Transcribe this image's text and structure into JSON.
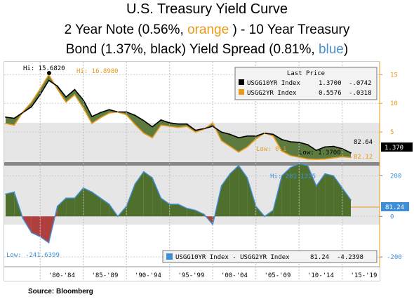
{
  "title": {
    "line1": "U.S. Treasury Yield Curve",
    "line2_a": "2 Year Note (0.56%, ",
    "line2_orange": "orange",
    "line2_b": " ) - 10 Year Treasury",
    "line3_a": "Bond  (1.37%, black) Yield Spread (0.81%, ",
    "line3_blue": "blue",
    "line3_b": ")"
  },
  "source": "Source: Bloomberg",
  "colors": {
    "orange": "#e89a1a",
    "black": "#000000",
    "blue": "#3f8fd8",
    "fill_green": "#4f6f2c",
    "fill_red": "#b04040",
    "upper_bg": "#e6e6e6",
    "lower_bg": "#e6e6e6"
  },
  "chart_data": [
    {
      "type": "line",
      "panel": "upper",
      "legend_title": "Last Price",
      "legend_placement": "top-right",
      "series": [
        {
          "name": "USGG10YR Index",
          "last": "1.3700",
          "change": "-.0742"
        },
        {
          "name": "USGG2YR Index",
          "last": "0.5576",
          "change": "-.0318"
        }
      ],
      "x_years": [
        1976,
        1977,
        1978,
        1979,
        1980,
        1981,
        1982,
        1983,
        1984,
        1985,
        1986,
        1987,
        1988,
        1989,
        1990,
        1991,
        1992,
        1993,
        1994,
        1995,
        1996,
        1997,
        1998,
        1999,
        2000,
        2001,
        2002,
        2003,
        2004,
        2005,
        2006,
        2007,
        2008,
        2009,
        2010,
        2011,
        2012,
        2013,
        2014,
        2015,
        2016
      ],
      "ten_year": [
        7.6,
        7.4,
        8.4,
        9.4,
        11.5,
        14.0,
        13.0,
        11.1,
        12.4,
        10.6,
        7.7,
        8.4,
        8.9,
        8.5,
        8.5,
        7.9,
        7.0,
        5.9,
        7.1,
        6.6,
        6.4,
        6.4,
        5.3,
        5.6,
        6.0,
        5.0,
        4.6,
        4.0,
        4.3,
        4.3,
        4.8,
        4.6,
        3.7,
        3.3,
        3.2,
        2.8,
        1.8,
        2.4,
        2.5,
        2.1,
        1.37
      ],
      "two_year": [
        6.5,
        6.2,
        8.5,
        10.2,
        12.5,
        15.0,
        12.5,
        10.2,
        11.5,
        9.2,
        6.5,
        7.5,
        8.3,
        8.5,
        8.0,
        6.3,
        4.8,
        4.0,
        6.2,
        6.0,
        5.8,
        6.0,
        5.0,
        5.5,
        6.6,
        3.5,
        2.5,
        1.5,
        2.4,
        3.8,
        4.8,
        4.3,
        1.7,
        0.9,
        0.6,
        0.3,
        0.25,
        0.3,
        0.5,
        0.7,
        0.56
      ],
      "y_ticks": [
        5,
        10,
        15
      ],
      "ylim": [
        0,
        17
      ],
      "annotations": {
        "hi_black": "Hi: 15.6820",
        "hi_orange": "Hi: 16.8980",
        "low_orange": "Low: 0.1",
        "low_black": "Low: 1.3700",
        "spread_callout": "82.64",
        "spread_callout2": "82.12",
        "last_value_tag": "1.370"
      }
    },
    {
      "type": "area",
      "panel": "lower",
      "legend_placement": "bottom-right",
      "series": [
        {
          "name": "USGG10YR Index - USGG2YR Index",
          "last": "81.24",
          "change": "-4.2398"
        }
      ],
      "x_years": [
        1976,
        1977,
        1978,
        1979,
        1980,
        1981,
        1982,
        1983,
        1984,
        1985,
        1986,
        1987,
        1988,
        1989,
        1990,
        1991,
        1992,
        1993,
        1994,
        1995,
        1996,
        1997,
        1998,
        1999,
        2000,
        2001,
        2002,
        2003,
        2004,
        2005,
        2006,
        2007,
        2008,
        2009,
        2010,
        2011,
        2012,
        2013,
        2014,
        2015,
        2016
      ],
      "spread_bp": [
        110,
        120,
        -10,
        -80,
        -100,
        -130,
        50,
        90,
        90,
        140,
        120,
        90,
        60,
        0,
        50,
        160,
        220,
        190,
        90,
        60,
        60,
        40,
        30,
        10,
        -40,
        150,
        210,
        250,
        190,
        50,
        0,
        30,
        200,
        240,
        260,
        250,
        150,
        210,
        200,
        140,
        81.24
      ],
      "y_ticks": [
        -200,
        0,
        200
      ],
      "ylim": [
        -241,
        243
      ],
      "annotations": {
        "hi": "Hi: 281.1225",
        "low": "Low: -241.6399",
        "last_value_tag": "81.24"
      }
    }
  ],
  "x_tick_labels": [
    "'80-'84",
    "'85-'89",
    "'90-'94",
    "'95-'99",
    "'00-'04",
    "'05-'09",
    "'10-'14",
    "'15-'19"
  ]
}
